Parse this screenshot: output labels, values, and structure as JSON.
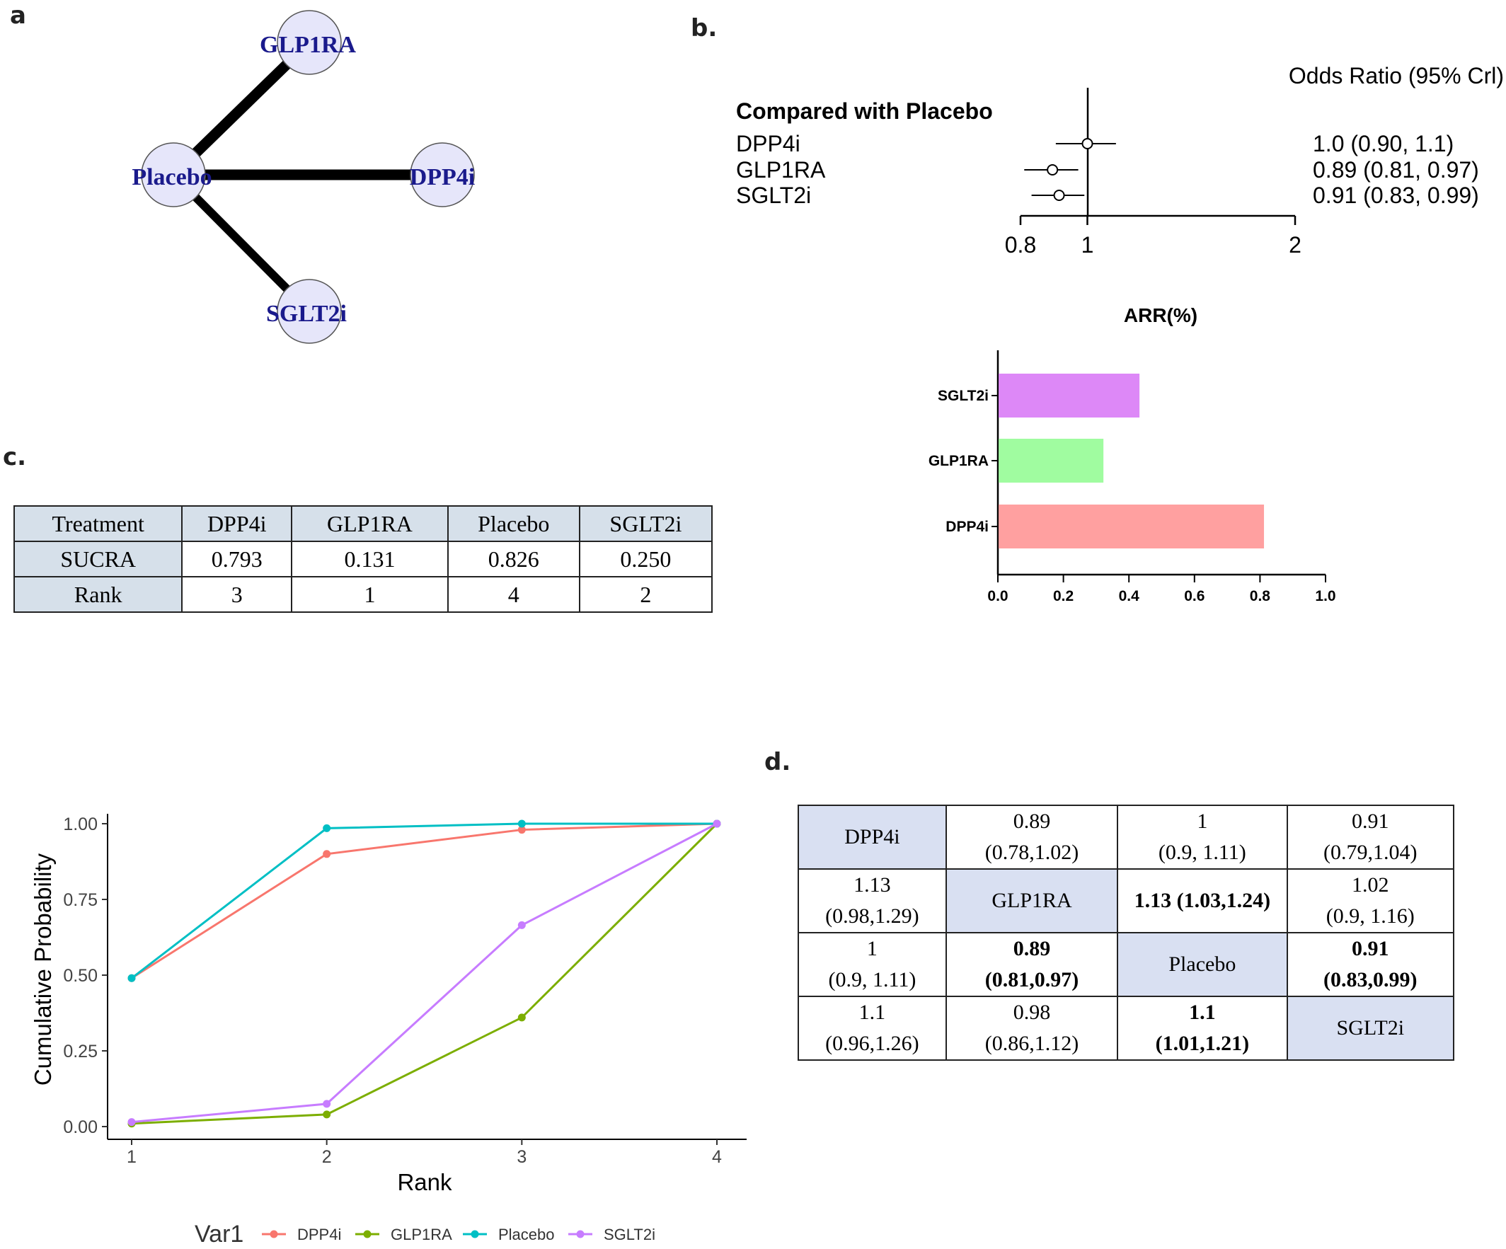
{
  "panels": {
    "a": "a",
    "b": "b.",
    "c": "c.",
    "d": "d."
  },
  "network": {
    "nodes": [
      "GLP1RA",
      "Placebo",
      "DPP4i",
      "SGLT2i"
    ],
    "edges": [
      [
        "Placebo",
        "GLP1RA"
      ],
      [
        "Placebo",
        "DPP4i"
      ],
      [
        "Placebo",
        "SGLT2i"
      ]
    ],
    "node_fill": "#e6e6fa",
    "label_color": "#1a1a8c"
  },
  "forest": {
    "header": "Odds Ratio (95% Crl)",
    "group_title": "Compared with Placebo",
    "rows": [
      {
        "name": "DPP4i",
        "or": 1.0,
        "lo": 0.9,
        "hi": 1.1,
        "text": "1.0 (0.90, 1.1)"
      },
      {
        "name": "GLP1RA",
        "or": 0.89,
        "lo": 0.81,
        "hi": 0.97,
        "text": "0.89 (0.81, 0.97)"
      },
      {
        "name": "SGLT2i",
        "or": 0.91,
        "lo": 0.83,
        "hi": 0.99,
        "text": "0.91 (0.83, 0.99)"
      }
    ],
    "ticks": [
      {
        "v": 0.8,
        "label": "0.8"
      },
      {
        "v": 1,
        "label": "1"
      },
      {
        "v": 2,
        "label": "2"
      }
    ]
  },
  "sucra_table": {
    "header": [
      "Treatment",
      "DPP4i",
      "GLP1RA",
      "Placebo",
      "SGLT2i"
    ],
    "rows": [
      [
        "SUCRA",
        "0.793",
        "0.131",
        "0.826",
        "0.250"
      ],
      [
        "Rank",
        "3",
        "1",
        "4",
        "2"
      ]
    ]
  },
  "league_table": {
    "rows": [
      [
        {
          "t": "DPP4i",
          "diag": true
        },
        {
          "t": "0.89",
          "t2": "(0.78,1.02)"
        },
        {
          "t": "1",
          "t2": "(0.9, 1.11)"
        },
        {
          "t": "0.91",
          "t2": "(0.79,1.04)"
        }
      ],
      [
        {
          "t": "1.13",
          "t2": "(0.98,1.29)"
        },
        {
          "t": "GLP1RA",
          "diag": true
        },
        {
          "t": "1.13 (1.03,1.24)",
          "bold": true
        },
        {
          "t": "1.02",
          "t2": "(0.9, 1.16)"
        }
      ],
      [
        {
          "t": "1",
          "t2": "(0.9, 1.11)"
        },
        {
          "t": "0.89",
          "t2": "(0.81,0.97)",
          "bold": true
        },
        {
          "t": "Placebo",
          "diag": true
        },
        {
          "t": "0.91",
          "t2": "(0.83,0.99)",
          "bold": true
        }
      ],
      [
        {
          "t": "1.1",
          "t2": "(0.96,1.26)"
        },
        {
          "t": "0.98",
          "t2": "(0.86,1.12)"
        },
        {
          "t": "1.1",
          "t2": "(1.01,1.21)",
          "bold": true
        },
        {
          "t": "SGLT2i",
          "diag": true
        }
      ]
    ]
  },
  "chart_data": [
    {
      "type": "bar",
      "orientation": "horizontal",
      "title": "ARR(%)",
      "categories": [
        "SGLT2i",
        "GLP1RA",
        "DPP4i"
      ],
      "values": [
        0.43,
        0.32,
        0.81
      ],
      "colors": [
        "#dd88f7",
        "#a0fca0",
        "#ffa0a0"
      ],
      "xlim": [
        0,
        1.0
      ],
      "xticks": [
        "0.0",
        "0.2",
        "0.4",
        "0.6",
        "0.8",
        "1.0"
      ]
    },
    {
      "type": "line",
      "xlabel": "Rank",
      "ylabel": "Cumulative Probability",
      "x": [
        1,
        2,
        3,
        4
      ],
      "xticks": [
        "1",
        "2",
        "3",
        "4"
      ],
      "ylim": [
        0,
        1
      ],
      "yticks": [
        "0.00",
        "0.25",
        "0.50",
        "0.75",
        "1.00"
      ],
      "legend_title": "Var1",
      "legend_position": "bottom",
      "series": [
        {
          "name": "DPP4i",
          "color": "#f8766d",
          "values": [
            0.49,
            0.9,
            0.98,
            1.0
          ]
        },
        {
          "name": "GLP1RA",
          "color": "#7cae00",
          "values": [
            0.01,
            0.04,
            0.36,
            1.0
          ]
        },
        {
          "name": "Placebo",
          "color": "#00bfc4",
          "values": [
            0.49,
            0.985,
            1.0,
            1.0
          ]
        },
        {
          "name": "SGLT2i",
          "color": "#c77cff",
          "values": [
            0.015,
            0.075,
            0.665,
            1.0
          ]
        }
      ]
    }
  ]
}
